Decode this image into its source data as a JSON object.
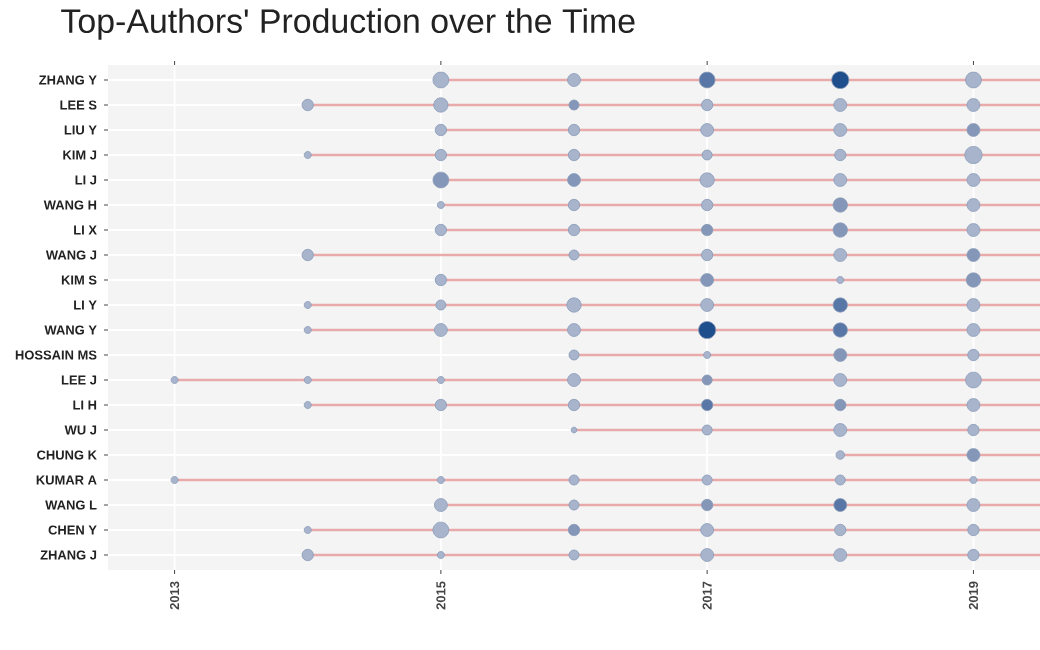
{
  "chart_data": {
    "type": "bubble",
    "title": "Top-Authors' Production over the Time",
    "orientation": "horizontal",
    "categories": [
      "ZHANG Y",
      "LEE S",
      "LIU Y",
      "KIM J",
      "LI J",
      "WANG H",
      "LI X",
      "WANG J",
      "KIM S",
      "LI Y",
      "WANG Y",
      "HOSSAIN MS",
      "LEE J",
      "LI H",
      "WU J",
      "CHUNG K",
      "KUMAR A",
      "WANG L",
      "CHEN Y",
      "ZHANG J"
    ],
    "xlim": [
      2012.5,
      2019.5
    ],
    "xticks": [
      2013,
      2015,
      2017,
      2019
    ],
    "grid": true,
    "marker": "circle",
    "series": [
      {
        "type": "bar",
        "color": "#e8aaaa",
        "base": [
          2015,
          2014,
          2015,
          2014,
          2015,
          2015,
          2015,
          2014,
          2015,
          2014,
          2014,
          2016,
          2013,
          2014,
          2016,
          2018,
          2013,
          2015,
          2014,
          2014
        ],
        "values": [
          4.5,
          5.5,
          4.5,
          5.5,
          4.5,
          4.5,
          4.5,
          5.5,
          4.5,
          5.5,
          5.5,
          3.5,
          6.5,
          5.5,
          3.5,
          1.5,
          6.5,
          4.5,
          5.5,
          5.5
        ]
      },
      {
        "values": [
          null,
          null,
          null,
          null,
          null,
          null,
          null,
          null,
          null,
          null,
          null,
          null,
          2013,
          null,
          null,
          null,
          2013,
          null,
          null,
          null
        ],
        "sizes": [
          null,
          null,
          null,
          null,
          null,
          null,
          null,
          null,
          null,
          null,
          null,
          null,
          0.17,
          null,
          null,
          null,
          0.17,
          null,
          null,
          null
        ],
        "colors": [
          null,
          null,
          null,
          null,
          null,
          null,
          null,
          null,
          null,
          null,
          null,
          null,
          "#a7b4cc",
          null,
          null,
          null,
          "#a7b4cc",
          null,
          null,
          null
        ]
      },
      {
        "values": [
          null,
          2014,
          null,
          2014,
          null,
          null,
          null,
          2014,
          null,
          2014,
          2014,
          null,
          2014,
          2014,
          null,
          null,
          null,
          null,
          2014,
          2014
        ],
        "sizes": [
          null,
          0.44,
          null,
          0.17,
          null,
          null,
          null,
          0.44,
          null,
          0.17,
          0.17,
          null,
          0.17,
          0.17,
          null,
          null,
          null,
          null,
          0.17,
          0.44
        ],
        "colors": [
          null,
          "#a7b4cc",
          null,
          "#a7b4cc",
          null,
          null,
          null,
          "#a7b4cc",
          null,
          "#a7b4cc",
          "#a7b4cc",
          null,
          "#a7b4cc",
          "#a7b4cc",
          null,
          null,
          null,
          null,
          "#a7b4cc",
          "#a7b4cc"
        ]
      },
      {
        "values": [
          2015,
          2015,
          2015,
          2015,
          2015,
          2015,
          2015,
          null,
          2015,
          2015,
          2015,
          null,
          2015,
          2015,
          null,
          null,
          2015,
          2015,
          2015,
          2015
        ],
        "sizes": [
          0.84,
          0.69,
          0.44,
          0.44,
          0.84,
          0.17,
          0.44,
          null,
          0.44,
          0.34,
          0.56,
          null,
          0.17,
          0.44,
          null,
          null,
          0.17,
          0.56,
          0.84,
          0.17
        ],
        "colors": [
          "#a7b4cc",
          "#a7b4cc",
          "#a7b4cc",
          "#a7b4cc",
          "#8497b8",
          "#a7b4cc",
          "#a7b4cc",
          null,
          "#a7b4cc",
          "#a7b4cc",
          "#a7b4cc",
          null,
          "#a7b4cc",
          "#a7b4cc",
          null,
          null,
          "#a7b4cc",
          "#a7b4cc",
          "#a7b4cc",
          "#a7b4cc"
        ]
      },
      {
        "values": [
          2016,
          2016,
          2016,
          2016,
          2016,
          2016,
          2016,
          2016,
          null,
          2016,
          2016,
          2016,
          2016,
          2016,
          2016,
          null,
          2016,
          2016,
          2016,
          2016
        ],
        "sizes": [
          0.56,
          0.34,
          0.44,
          0.44,
          0.56,
          0.44,
          0.44,
          0.34,
          null,
          0.69,
          0.56,
          0.34,
          0.56,
          0.44,
          0.11,
          null,
          0.34,
          0.34,
          0.44,
          0.34
        ],
        "colors": [
          "#a7b4cc",
          "#8497b8",
          "#a7b4cc",
          "#a7b4cc",
          "#8497b8",
          "#a7b4cc",
          "#a7b4cc",
          "#a7b4cc",
          null,
          "#a7b4cc",
          "#a7b4cc",
          "#a7b4cc",
          "#a7b4cc",
          "#a7b4cc",
          "#a7b4cc",
          null,
          "#a7b4cc",
          "#a7b4cc",
          "#8497b8",
          "#a7b4cc"
        ]
      },
      {
        "values": [
          2017,
          2017,
          2017,
          2017,
          2017,
          2017,
          2017,
          2017,
          2017,
          2017,
          2017,
          2017,
          2017,
          2017,
          2017,
          null,
          2017,
          2017,
          2017,
          2017
        ],
        "sizes": [
          0.84,
          0.44,
          0.56,
          0.34,
          0.69,
          0.44,
          0.44,
          0.44,
          0.56,
          0.56,
          1,
          0.17,
          0.34,
          0.44,
          0.34,
          null,
          0.34,
          0.44,
          0.56,
          0.56
        ],
        "colors": [
          "#5877a6",
          "#a7b4cc",
          "#a7b4cc",
          "#a7b4cc",
          "#a7b4cc",
          "#a7b4cc",
          "#8497b8",
          "#a7b4cc",
          "#8497b8",
          "#a7b4cc",
          "#1f4e8c",
          "#a7b4cc",
          "#8497b8",
          "#5877a6",
          "#a7b4cc",
          null,
          "#a7b4cc",
          "#8497b8",
          "#a7b4cc",
          "#a7b4cc"
        ]
      },
      {
        "values": [
          2018,
          2018,
          2018,
          2018,
          2018,
          2018,
          2018,
          2018,
          2018,
          2018,
          2018,
          2018,
          2018,
          2018,
          2018,
          2018,
          2018,
          2018,
          2018,
          2018
        ],
        "sizes": [
          1,
          0.56,
          0.56,
          0.44,
          0.56,
          0.69,
          0.69,
          0.56,
          0.17,
          0.69,
          0.69,
          0.56,
          0.56,
          0.44,
          0.56,
          0.25,
          0.34,
          0.56,
          0.44,
          0.56
        ],
        "colors": [
          "#1f4e8c",
          "#a7b4cc",
          "#a7b4cc",
          "#a7b4cc",
          "#a7b4cc",
          "#8497b8",
          "#8497b8",
          "#a7b4cc",
          "#a7b4cc",
          "#5877a6",
          "#5877a6",
          "#8497b8",
          "#a7b4cc",
          "#8497b8",
          "#a7b4cc",
          "#a7b4cc",
          "#a7b4cc",
          "#5877a6",
          "#a7b4cc",
          "#a7b4cc"
        ]
      },
      {
        "values": [
          2019,
          2019,
          2019,
          2019,
          2019,
          2019,
          2019,
          2019,
          2019,
          2019,
          2019,
          2019,
          2019,
          2019,
          2019,
          2019,
          2019,
          2019,
          2019,
          2019
        ],
        "sizes": [
          0.84,
          0.56,
          0.56,
          1,
          0.56,
          0.56,
          0.56,
          0.56,
          0.69,
          0.56,
          0.56,
          0.44,
          0.84,
          0.56,
          0.44,
          0.56,
          0.17,
          0.56,
          0.44,
          0.44
        ],
        "colors": [
          "#a7b4cc",
          "#a7b4cc",
          "#8497b8",
          "#a7b4cc",
          "#a7b4cc",
          "#a7b4cc",
          "#a7b4cc",
          "#8497b8",
          "#8497b8",
          "#a7b4cc",
          "#a7b4cc",
          "#a7b4cc",
          "#a7b4cc",
          "#a7b4cc",
          "#a7b4cc",
          "#8497b8",
          "#a7b4cc",
          "#a7b4cc",
          "#a7b4cc",
          "#a7b4cc"
        ]
      }
    ]
  }
}
